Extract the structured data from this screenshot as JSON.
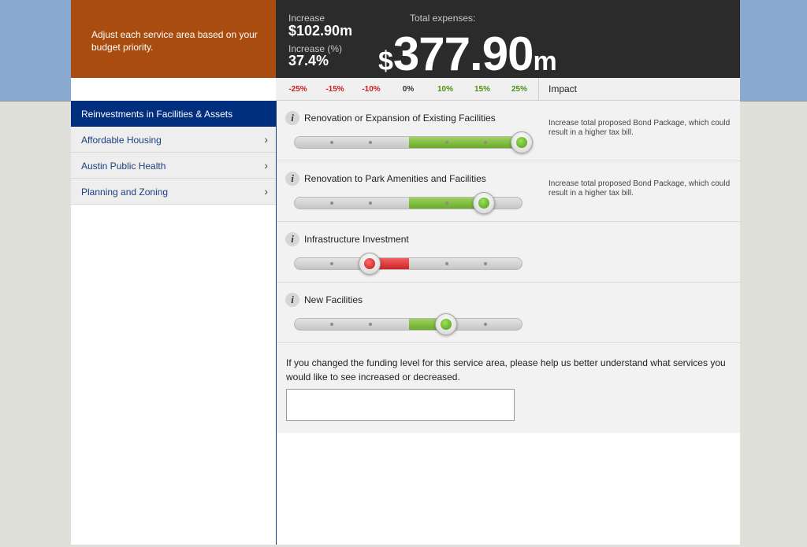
{
  "intro": {
    "text": "Adjust each service area based on your budget priority."
  },
  "summary": {
    "increase_label": "Increase",
    "increase_value": "$102.90m",
    "increase_pct_label": "Increase (%)",
    "increase_pct_value": "37.4%",
    "total_label": "Total expenses:",
    "total_currency": "$",
    "total_value": "377.90",
    "total_unit": "m"
  },
  "scale": {
    "ticks": [
      "-25%",
      "-15%",
      "-10%",
      "0%",
      "10%",
      "15%",
      "25%"
    ],
    "impact_header": "Impact"
  },
  "nav": {
    "items": [
      {
        "label": "Reinvestments in Facilities & Assets",
        "active": true
      },
      {
        "label": "Affordable Housing"
      },
      {
        "label": "Austin Public Health"
      },
      {
        "label": "Planning and Zoning"
      }
    ]
  },
  "rows": [
    {
      "title": "Renovation or Expansion of Existing Facilities",
      "impact": "Increase total proposed Bond Package, which could result in a higher tax bill.",
      "level_pct": 25
    },
    {
      "title": "Renovation to Park Amenities and Facilities",
      "impact": "Increase total proposed Bond Package, which could result in a higher tax bill.",
      "level_pct": 15
    },
    {
      "title": "Infrastructure Investment",
      "impact": "",
      "level_pct": -10
    },
    {
      "title": "New Facilities",
      "impact": "",
      "level_pct": 10
    }
  ],
  "feedback": {
    "question": "If you changed the funding level for this service area, please help us better understand what services you would like to see increased or decreased.",
    "value": ""
  },
  "colors": {
    "intro_bg": "#a84c0f",
    "summary_bg": "#2b2b2b",
    "nav_active_bg": "#002f80",
    "slider_increase": "#7bbf38",
    "slider_decrease": "#d93030"
  },
  "icons": {
    "info": "info-icon",
    "nav_arrow": "chevron-right-icon"
  }
}
